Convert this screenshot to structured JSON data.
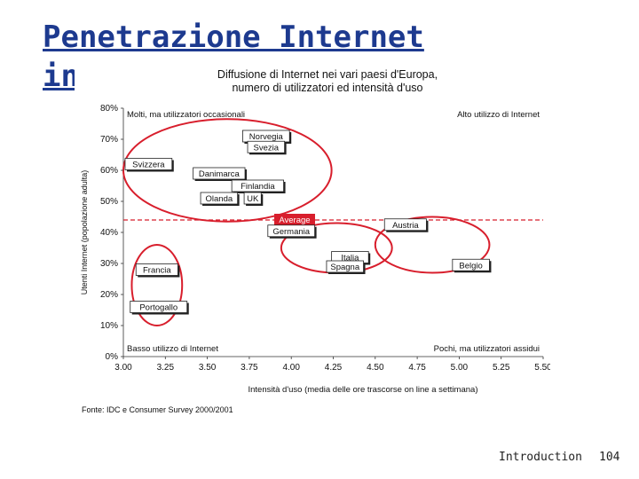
{
  "slide": {
    "title": "Penetrazione Internet in Europa",
    "footer_label": "Introduction",
    "page_number": "104"
  },
  "chart_data": {
    "type": "scatter",
    "title": "Diffusione di Internet nei vari paesi d'Europa,",
    "subtitle": "numero di utilizzatori ed intensità d'uso",
    "xlabel": "Intensità d'uso (media delle ore trascorse on line a settimana)",
    "ylabel": "Utenti Internet (popolazione adulta)",
    "source": "Fonte: IDC e Consumer Survey 2000/2001",
    "xlim": [
      3.0,
      5.5
    ],
    "ylim": [
      0,
      80
    ],
    "x_ticks": [
      {
        "value": 3.0,
        "label": "3.00"
      },
      {
        "value": 3.25,
        "label": "3.25"
      },
      {
        "value": 3.5,
        "label": "3.50"
      },
      {
        "value": 3.75,
        "label": "3.75"
      },
      {
        "value": 4.0,
        "label": "4.00"
      },
      {
        "value": 4.25,
        "label": "4.25"
      },
      {
        "value": 4.5,
        "label": "4.50"
      },
      {
        "value": 4.75,
        "label": "4.75"
      },
      {
        "value": 5.0,
        "label": "5.00"
      },
      {
        "value": 5.25,
        "label": "5.25"
      },
      {
        "value": 5.5,
        "label": "5.50"
      }
    ],
    "y_ticks": [
      {
        "value": 0,
        "label": "0%"
      },
      {
        "value": 10,
        "label": "10%"
      },
      {
        "value": 20,
        "label": "20%"
      },
      {
        "value": 30,
        "label": "30%"
      },
      {
        "value": 40,
        "label": "40%"
      },
      {
        "value": 50,
        "label": "50%"
      },
      {
        "value": 60,
        "label": "60%"
      },
      {
        "value": 70,
        "label": "70%"
      },
      {
        "value": 80,
        "label": "80%"
      }
    ],
    "average": {
      "label": "Average",
      "y": 44
    },
    "quadrant_labels": [
      {
        "text": "Molti, ma utilizzatori occasionali",
        "position": "top-left"
      },
      {
        "text": "Alto utilizzo di Internet",
        "position": "top-right"
      },
      {
        "text": "Basso utilizzo di Internet",
        "position": "bottom-left"
      },
      {
        "text": "Pochi, ma utilizzatori assidui",
        "position": "bottom-right"
      }
    ],
    "points": [
      {
        "name": "Norvegia",
        "x": 3.85,
        "y": 71
      },
      {
        "name": "Svezia",
        "x": 3.85,
        "y": 67.5
      },
      {
        "name": "Svizzera",
        "x": 3.15,
        "y": 62
      },
      {
        "name": "Danimarca",
        "x": 3.57,
        "y": 59
      },
      {
        "name": "Finlandia",
        "x": 3.8,
        "y": 55
      },
      {
        "name": "Olanda",
        "x": 3.57,
        "y": 51
      },
      {
        "name": "UK",
        "x": 3.77,
        "y": 51
      },
      {
        "name": "Germania",
        "x": 4.0,
        "y": 40.5
      },
      {
        "name": "Austria",
        "x": 4.68,
        "y": 42.5
      },
      {
        "name": "Italia",
        "x": 4.35,
        "y": 32
      },
      {
        "name": "Spagna",
        "x": 4.32,
        "y": 29
      },
      {
        "name": "Belgio",
        "x": 5.07,
        "y": 29.5
      },
      {
        "name": "Francia",
        "x": 3.2,
        "y": 28
      },
      {
        "name": "Portogallo",
        "x": 3.21,
        "y": 16
      }
    ],
    "clusters": [
      {
        "name": "cluster-high-users",
        "cx": 3.62,
        "cy": 60,
        "rx": 0.62,
        "ry": 16.5
      },
      {
        "name": "cluster-mid",
        "cx": 4.27,
        "cy": 35,
        "rx": 0.33,
        "ry": 8
      },
      {
        "name": "cluster-right",
        "cx": 4.84,
        "cy": 36,
        "rx": 0.34,
        "ry": 9
      },
      {
        "name": "cluster-low",
        "cx": 3.2,
        "cy": 23,
        "rx": 0.15,
        "ry": 13
      }
    ],
    "colors": {
      "highlight": "#d81e2c",
      "axis": "#333333",
      "text": "#111111"
    }
  }
}
